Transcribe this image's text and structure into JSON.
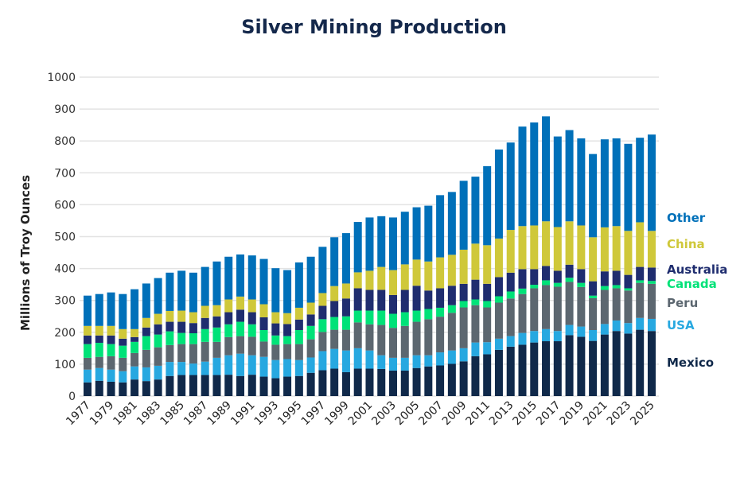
{
  "chart_data": {
    "type": "bar",
    "stacked": true,
    "title": "Silver Mining Production",
    "xlabel": "",
    "ylabel": "Millions of Troy Ounces",
    "ylim": [
      0,
      1000
    ],
    "yticks": [
      0,
      100,
      200,
      300,
      400,
      500,
      600,
      700,
      800,
      900,
      1000
    ],
    "grid": true,
    "legend_placement": "right",
    "categories": [
      1977,
      1978,
      1979,
      1980,
      1981,
      1982,
      1983,
      1984,
      1985,
      1986,
      1987,
      1988,
      1989,
      1990,
      1991,
      1992,
      1993,
      1994,
      1995,
      1996,
      1997,
      1998,
      1999,
      2000,
      2001,
      2002,
      2003,
      2004,
      2005,
      2006,
      2007,
      2008,
      2009,
      2010,
      2011,
      2012,
      2013,
      2014,
      2015,
      2016,
      2017,
      2018,
      2019,
      2020,
      2021,
      2022,
      2023,
      2024,
      2025
    ],
    "series": [
      {
        "name": "Mexico",
        "color": "#10294a",
        "values": [
          43,
          48,
          45,
          43,
          52,
          47,
          52,
          63,
          66,
          66,
          66,
          66,
          67,
          63,
          67,
          61,
          56,
          61,
          63,
          73,
          81,
          86,
          75,
          86,
          86,
          85,
          80,
          80,
          88,
          93,
          96,
          101,
          109,
          125,
          131,
          145,
          155,
          161,
          168,
          172,
          172,
          191,
          186,
          173,
          193,
          204,
          196,
          208,
          204
        ]
      },
      {
        "name": "USA",
        "color": "#27a8e0",
        "values": [
          40,
          40,
          38,
          35,
          41,
          43,
          43,
          44,
          41,
          36,
          42,
          54,
          61,
          70,
          61,
          62,
          57,
          55,
          50,
          48,
          60,
          62,
          68,
          64,
          57,
          43,
          40,
          40,
          40,
          35,
          41,
          42,
          41,
          43,
          38,
          35,
          33,
          37,
          36,
          38,
          32,
          32,
          32,
          34,
          33,
          33,
          33,
          37,
          38
        ]
      },
      {
        "name": "Peru",
        "color": "#5c6770",
        "values": [
          37,
          35,
          42,
          42,
          42,
          55,
          58,
          53,
          56,
          61,
          62,
          50,
          57,
          55,
          58,
          48,
          48,
          47,
          50,
          57,
          60,
          60,
          65,
          81,
          82,
          95,
          94,
          100,
          105,
          113,
          112,
          118,
          128,
          117,
          109,
          113,
          118,
          122,
          134,
          138,
          139,
          135,
          124,
          100,
          107,
          101,
          102,
          110,
          110
        ]
      },
      {
        "name": "Canada",
        "color": "#00e278",
        "values": [
          43,
          44,
          38,
          38,
          35,
          43,
          40,
          43,
          35,
          34,
          40,
          45,
          40,
          45,
          39,
          36,
          29,
          25,
          44,
          42,
          40,
          40,
          42,
          37,
          43,
          45,
          44,
          43,
          35,
          32,
          28,
          24,
          20,
          18,
          20,
          20,
          22,
          17,
          11,
          15,
          12,
          13,
          13,
          8,
          12,
          10,
          7,
          8,
          9
        ]
      },
      {
        "name": "Australia",
        "color": "#1f2d6f",
        "values": [
          27,
          23,
          27,
          22,
          15,
          27,
          32,
          30,
          35,
          32,
          35,
          35,
          38,
          38,
          38,
          40,
          38,
          38,
          33,
          36,
          42,
          50,
          56,
          70,
          65,
          65,
          59,
          70,
          78,
          58,
          61,
          61,
          54,
          62,
          54,
          60,
          59,
          61,
          49,
          45,
          38,
          41,
          43,
          45,
          46,
          45,
          42,
          42,
          42
        ]
      },
      {
        "name": "China",
        "color": "#cfc83a",
        "values": [
          30,
          30,
          30,
          30,
          25,
          30,
          33,
          34,
          35,
          34,
          38,
          35,
          40,
          41,
          40,
          41,
          35,
          34,
          37,
          37,
          40,
          47,
          47,
          50,
          60,
          72,
          78,
          80,
          82,
          91,
          97,
          97,
          107,
          113,
          121,
          121,
          134,
          135,
          137,
          140,
          137,
          136,
          137,
          138,
          138,
          140,
          138,
          140,
          115
        ]
      },
      {
        "name": "Other",
        "color": "#0070b9",
        "values": [
          95,
          100,
          105,
          110,
          125,
          108,
          112,
          120,
          125,
          124,
          122,
          137,
          134,
          132,
          138,
          142,
          138,
          135,
          142,
          144,
          145,
          153,
          158,
          158,
          167,
          159,
          165,
          165,
          164,
          175,
          195,
          197,
          216,
          210,
          248,
          279,
          274,
          312,
          323,
          329,
          284,
          286,
          273,
          261,
          276,
          275,
          273,
          265,
          302
        ]
      }
    ]
  }
}
